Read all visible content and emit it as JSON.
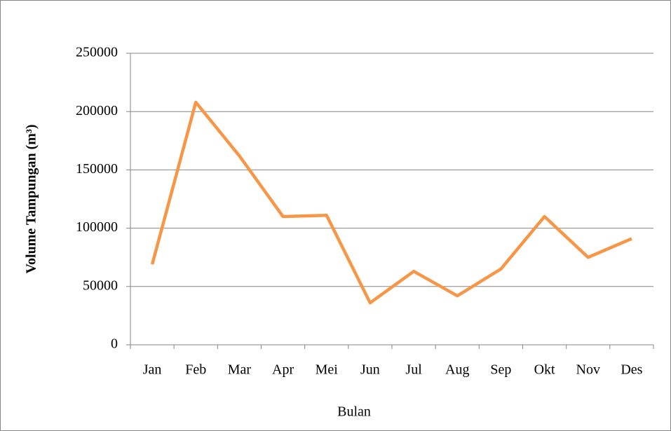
{
  "chart_data": {
    "type": "line",
    "x_label": "Bulan",
    "y_label": "Volume Tampungan (m³)",
    "categories": [
      "Jan",
      "Feb",
      "Mar",
      "Apr",
      "Mei",
      "Jun",
      "Jul",
      "Aug",
      "Sep",
      "Okt",
      "Nov",
      "Des"
    ],
    "series": [
      {
        "name": "Volume Tampungan",
        "color": "#f79646",
        "values": [
          69000,
          208000,
          162000,
          110000,
          111000,
          36000,
          63000,
          42000,
          65000,
          110000,
          75000,
          91000
        ]
      }
    ],
    "ylim": [
      0,
      250000
    ],
    "yticks": [
      0,
      50000,
      100000,
      150000,
      200000,
      250000
    ],
    "grid": true
  }
}
